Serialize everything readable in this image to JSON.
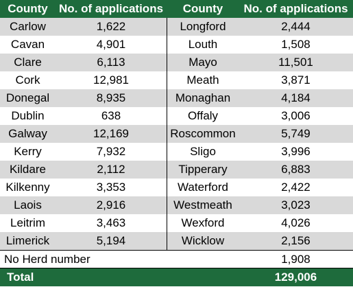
{
  "headers": [
    "County",
    "No. of applications",
    "County",
    "No. of applications"
  ],
  "rows": [
    [
      "Carlow",
      "1,622",
      "Longford",
      "2,444"
    ],
    [
      "Cavan",
      "4,901",
      "Louth",
      "1,508"
    ],
    [
      "Clare",
      "6,113",
      "Mayo",
      "11,501"
    ],
    [
      "Cork",
      "12,981",
      "Meath",
      "3,871"
    ],
    [
      "Donegal",
      "8,935",
      "Monaghan",
      "4,184"
    ],
    [
      "Dublin",
      "638",
      "Offaly",
      "3,006"
    ],
    [
      "Galway",
      "12,169",
      "Roscommon",
      "5,749"
    ],
    [
      "Kerry",
      "7,932",
      "Sligo",
      "3,996"
    ],
    [
      "Kildare",
      "2,112",
      "Tipperary",
      "6,883"
    ],
    [
      "Kilkenny",
      "3,353",
      "Waterford",
      "2,422"
    ],
    [
      "Laois",
      "2,916",
      "Westmeath",
      "3,023"
    ],
    [
      "Leitrim",
      "3,463",
      "Wexford",
      "4,026"
    ],
    [
      "Limerick",
      "5,194",
      "Wicklow",
      "2,156"
    ]
  ],
  "no_herd": {
    "label": "No Herd number",
    "value": "1,908"
  },
  "total": {
    "label": "Total",
    "value": "129,006"
  },
  "colors": {
    "header": "#1e6b3c",
    "alt_row": "#d9d9d9"
  }
}
